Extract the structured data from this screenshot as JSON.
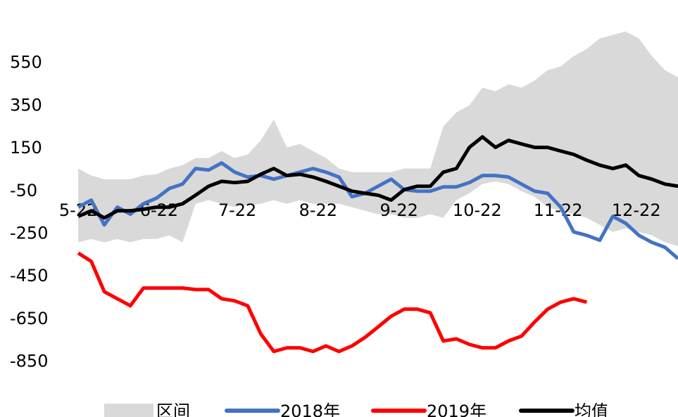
{
  "chart_data": {
    "type": "line",
    "x": [
      0,
      5,
      10,
      15,
      20,
      25,
      30,
      35,
      40,
      45,
      50,
      55,
      60,
      65,
      70,
      75,
      80,
      85,
      90,
      95,
      100,
      105,
      110,
      115,
      120,
      125,
      130,
      135,
      140,
      145,
      150,
      155,
      160,
      165,
      170,
      175,
      180,
      185,
      190,
      195,
      200,
      205,
      210,
      215,
      220,
      225,
      230
    ],
    "xlim": [
      -3,
      230
    ],
    "xticks": [
      {
        "value": 0,
        "label": "5-22"
      },
      {
        "value": 31,
        "label": "6-22"
      },
      {
        "value": 61,
        "label": "7-22"
      },
      {
        "value": 92,
        "label": "8-22"
      },
      {
        "value": 123,
        "label": "9-22"
      },
      {
        "value": 153,
        "label": "10-22"
      },
      {
        "value": 184,
        "label": "11-22"
      },
      {
        "value": 214,
        "label": "12-22"
      }
    ],
    "ylim": [
      -950,
      750
    ],
    "yticks": [
      550,
      350,
      150,
      -50,
      -250,
      -450,
      -650,
      -850
    ],
    "band": {
      "name": "区间",
      "color": "#d9d9d9",
      "low": [
        -290,
        -274,
        -290,
        -274,
        -290,
        -274,
        -274,
        -257,
        -290,
        -109,
        -92,
        -109,
        -125,
        -116,
        -109,
        -92,
        -109,
        -92,
        -109,
        -109,
        -109,
        -125,
        -142,
        -158,
        -158,
        -175,
        -175,
        -158,
        -175,
        -92,
        -60,
        -17,
        -4,
        -17,
        -50,
        -76,
        -125,
        -142,
        -158,
        -175,
        -208,
        -241,
        -224,
        -241,
        -257,
        -290,
        -307
      ],
      "high": [
        56,
        23,
        6,
        6,
        6,
        23,
        29,
        56,
        72,
        105,
        105,
        138,
        105,
        122,
        188,
        286,
        155,
        171,
        138,
        105,
        56,
        39,
        39,
        39,
        39,
        56,
        56,
        56,
        253,
        319,
        352,
        435,
        418,
        451,
        435,
        468,
        517,
        534,
        583,
        616,
        665,
        682,
        698,
        665,
        583,
        517,
        484
      ]
    },
    "series": [
      {
        "name": "2018年",
        "color": "#4472c4",
        "values": [
          -125,
          -92,
          -208,
          -125,
          -158,
          -109,
          -83,
          -37,
          -17,
          56,
          49,
          82,
          39,
          16,
          23,
          6,
          23,
          39,
          56,
          39,
          16,
          -76,
          -60,
          -27,
          6,
          -43,
          -50,
          -50,
          -30,
          -30,
          -10,
          23,
          23,
          16,
          -17,
          -50,
          -60,
          -125,
          -241,
          -257,
          -280,
          -168,
          -201,
          -257,
          -290,
          -313,
          -366
        ]
      },
      {
        "name": "2019年",
        "color": "#ff0000",
        "values": [
          -340,
          -379,
          -521,
          -554,
          -587,
          -504,
          -504,
          -504,
          -504,
          -511,
          -511,
          -554,
          -564,
          -587,
          -719,
          -801,
          -784,
          -784,
          -801,
          -775,
          -801,
          -775,
          -735,
          -686,
          -636,
          -603,
          -603,
          -620,
          -752,
          -742,
          -768,
          -784,
          -784,
          -752,
          -729,
          -663,
          -603,
          -570,
          -554,
          -570,
          null,
          null,
          null,
          null,
          null,
          null,
          null
        ]
      },
      {
        "name": "均值",
        "color": "#000000",
        "values": [
          -168,
          -142,
          -175,
          -142,
          -142,
          -135,
          -125,
          -125,
          -109,
          -69,
          -27,
          -4,
          -10,
          -4,
          29,
          56,
          23,
          29,
          16,
          -4,
          -27,
          -50,
          -60,
          -69,
          -92,
          -43,
          -27,
          -27,
          39,
          56,
          155,
          204,
          155,
          188,
          171,
          155,
          155,
          138,
          122,
          95,
          72,
          56,
          72,
          23,
          6,
          -17,
          -27
        ]
      }
    ]
  }
}
